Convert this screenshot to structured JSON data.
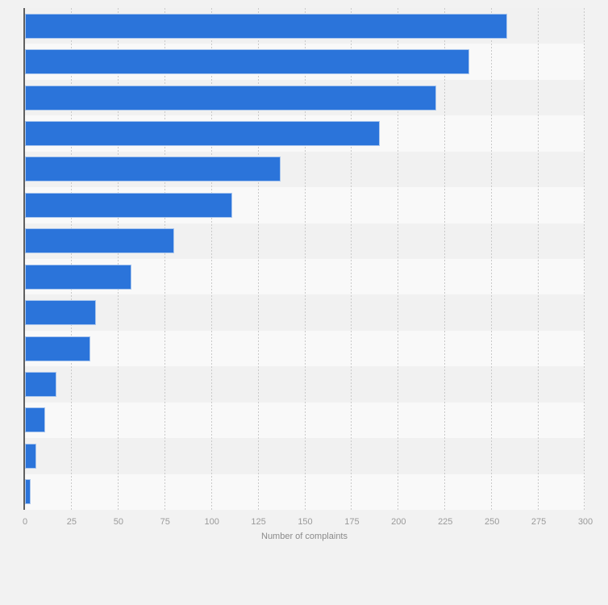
{
  "chart_data": {
    "type": "bar",
    "orientation": "horizontal",
    "title": "",
    "xlabel": "Number of complaints",
    "ylabel": "",
    "values": [
      258,
      238,
      220,
      190,
      137,
      111,
      80,
      57,
      38,
      35,
      17,
      11,
      6,
      3
    ],
    "category_labels_visible": false,
    "x_ticks": [
      0,
      25,
      50,
      75,
      100,
      125,
      150,
      175,
      200,
      225,
      250,
      275,
      300
    ],
    "xlim": [
      0,
      300
    ],
    "grid": "vertical-dotted",
    "legend": "none",
    "colors": {
      "bar_fill": "#2b74da",
      "bar_border": "#a9c6ee",
      "band_odd": "#f1f1f1",
      "band_even": "#f9f9f9",
      "background": "#f2f2f2",
      "axis_line": "#606060",
      "gridline": "#c9c9c9",
      "tick_label": "#9a9a9a",
      "axis_title": "#8a8a8a"
    }
  }
}
